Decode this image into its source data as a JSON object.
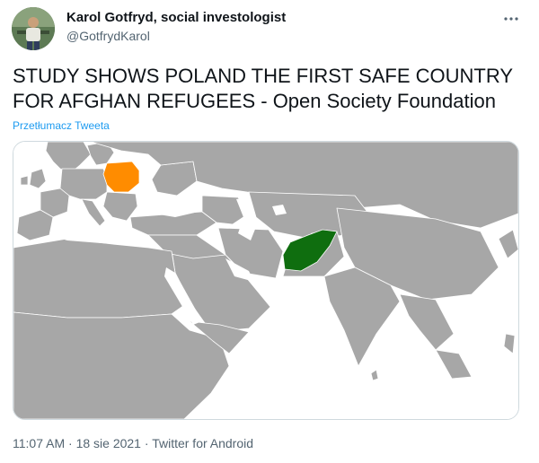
{
  "author": {
    "display_name": "Karol Gotfryd, social investologist",
    "handle": "@GotfrydKarol"
  },
  "tweet": {
    "text_line1": "STUDY SHOWS POLAND THE FIRST SAFE COUNTRY",
    "text_line2": "FOR AFGHAN REFUGEES - Open Society Foundation",
    "translate_label": "Przetłumacz Tweeta"
  },
  "media": {
    "map": {
      "highlighted": [
        {
          "country": "Poland",
          "color": "#ff8c00"
        },
        {
          "country": "Afghanistan",
          "color": "#0f6e0f"
        }
      ],
      "land_color": "#a7a7a7",
      "water_color": "#ffffff"
    }
  },
  "meta": {
    "time": "11:07 AM",
    "sep1": " · ",
    "date": "18 sie 2021",
    "sep2": " · ",
    "source": "Twitter for Android"
  },
  "icons": {
    "more": "more-dots-icon"
  }
}
